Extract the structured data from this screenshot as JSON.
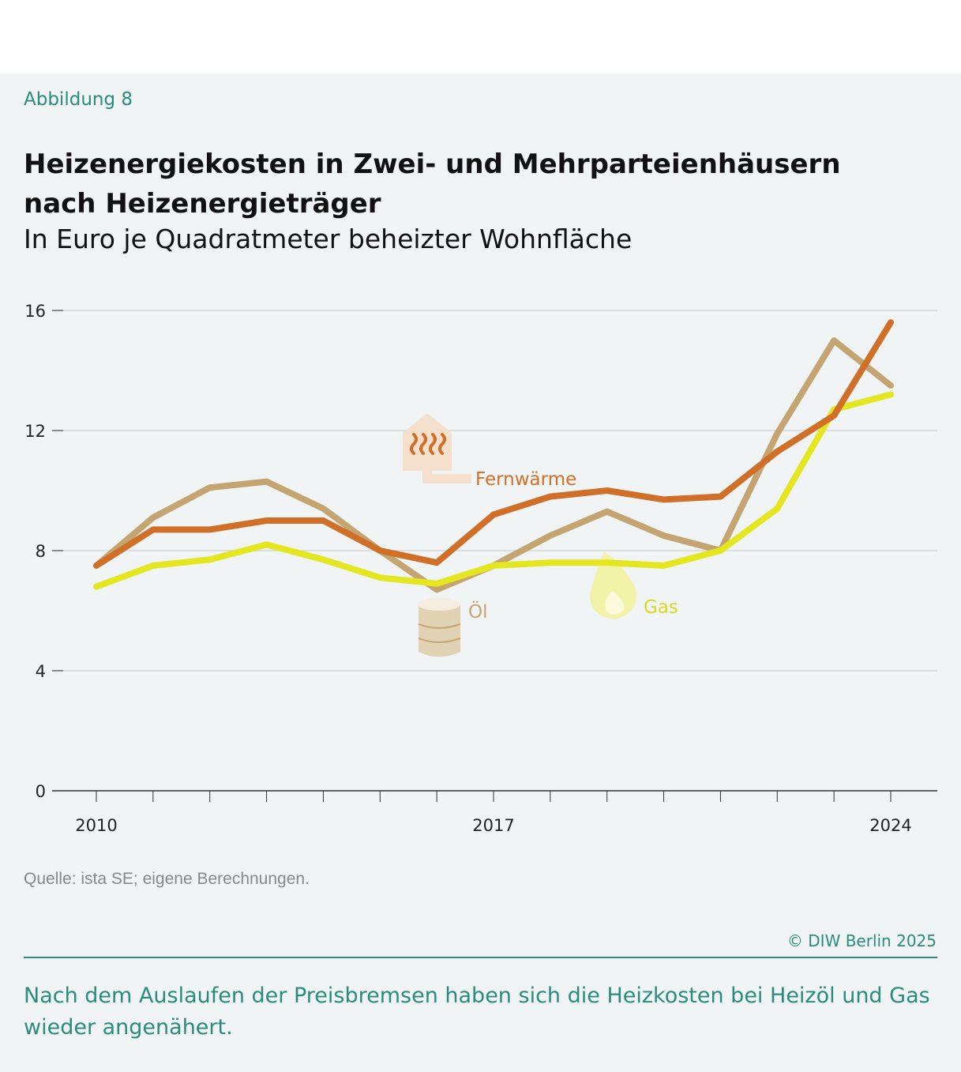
{
  "figure_label": "Abbildung 8",
  "title_line1": "Heizenergiekosten in Zwei- und Mehrparteienhäusern",
  "title_line2": "nach Heizenergieträger",
  "subtitle": "In Euro je Quadratmeter beheizter Wohnfläche",
  "source": "Quelle: ista SE; eigene Berechnungen.",
  "copyright": "© DIW Berlin 2025",
  "note": "Nach dem Auslaufen der Preisbremsen haben sich die Heizkosten bei Heizöl und Gas wieder angenähert.",
  "chart_data": {
    "type": "line",
    "x": [
      2010,
      2011,
      2012,
      2013,
      2014,
      2015,
      2016,
      2017,
      2018,
      2019,
      2020,
      2021,
      2022,
      2023,
      2024
    ],
    "x_tick_labels": [
      "2010",
      "2017",
      "2024"
    ],
    "y_ticks": [
      0,
      4,
      8,
      12,
      16
    ],
    "ylim": [
      0,
      16
    ],
    "grid": true,
    "series": [
      {
        "name": "Fernwärme",
        "color": "#d07028",
        "icon": "house-heating-icon",
        "values": [
          7.5,
          8.7,
          8.7,
          9.0,
          9.0,
          8.0,
          7.6,
          9.2,
          9.8,
          10.0,
          9.7,
          9.8,
          11.3,
          12.5,
          15.6
        ]
      },
      {
        "name": "Öl",
        "color": "#c4a572",
        "icon": "oil-barrel-icon",
        "values": [
          7.5,
          9.1,
          10.1,
          10.3,
          9.4,
          8.0,
          6.7,
          7.5,
          8.5,
          9.3,
          8.5,
          8.0,
          11.9,
          15.0,
          13.5
        ]
      },
      {
        "name": "Gas",
        "color": "#e4e620",
        "icon": "flame-icon",
        "values": [
          6.8,
          7.5,
          7.7,
          8.2,
          7.7,
          7.1,
          6.9,
          7.5,
          7.6,
          7.6,
          7.5,
          8.0,
          9.4,
          12.7,
          13.2
        ]
      }
    ]
  }
}
